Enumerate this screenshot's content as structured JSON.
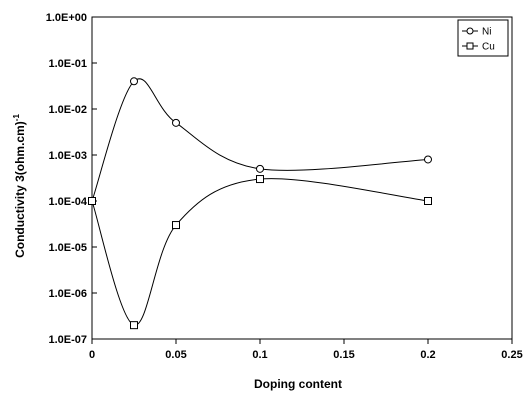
{
  "chart_data": {
    "type": "line",
    "xlabel": "Doping content",
    "ylabel": "Conductivity 3(ohm.cm)",
    "ylabel_superscript": "-1",
    "x_scale": "linear",
    "y_scale": "log",
    "xlim": [
      0,
      0.25
    ],
    "ylim": [
      1e-07,
      1
    ],
    "x_ticks": [
      0,
      0.05,
      0.1,
      0.15,
      0.2,
      0.25
    ],
    "x_tick_labels": [
      "0",
      "0.05",
      "0.1",
      "0.15",
      "0.2",
      "0.25"
    ],
    "y_ticks": [
      1e-07,
      1e-06,
      1e-05,
      0.0001,
      0.001,
      0.01,
      0.1,
      1
    ],
    "y_tick_labels": [
      "1.0E-07",
      "1.0E-06",
      "1.0E-05",
      "1.0E-04",
      "1.0E-03",
      "1.0E-02",
      "1.0E-01",
      "1.0E+00"
    ],
    "grid": false,
    "legend_position": "top-right",
    "series": [
      {
        "name": "Ni",
        "marker": "circle",
        "x": [
          0,
          0.025,
          0.05,
          0.1,
          0.2
        ],
        "y": [
          0.0001,
          0.04,
          0.005,
          0.0005,
          0.0008
        ]
      },
      {
        "name": "Cu",
        "marker": "square",
        "x": [
          0,
          0.025,
          0.05,
          0.1,
          0.2
        ],
        "y": [
          0.0001,
          2e-07,
          3e-05,
          0.0003,
          0.0001
        ]
      }
    ]
  }
}
